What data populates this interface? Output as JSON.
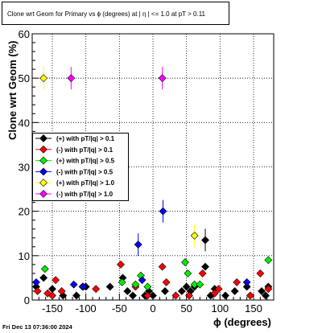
{
  "chart_data": {
    "type": "scatter",
    "title": "Clone wrt Geom for Primary vs ϕ (degrees) at |  η  | <= 1.0 at pT > 0.11",
    "xlabel": "ϕ (degrees)",
    "ylabel": "Clone wrt Geom (%)",
    "xlim": [
      -180,
      180
    ],
    "ylim": [
      0,
      60
    ],
    "xticks": [
      -150,
      -100,
      -50,
      0,
      50,
      100,
      150
    ],
    "yticks": [
      0,
      10,
      20,
      30,
      40,
      50,
      60
    ],
    "grid": true,
    "legend_position": "left-middle",
    "series": [
      {
        "name": "(+) with pT/|q| > 0.1",
        "color": "#000000",
        "points": [
          [
            -174,
            3
          ],
          [
            -163,
            5
          ],
          [
            -150,
            2.5
          ],
          [
            -134,
            1
          ],
          [
            -114,
            1
          ],
          [
            -100,
            3
          ],
          [
            -64,
            3
          ],
          [
            -45,
            5
          ],
          [
            -38,
            2
          ],
          [
            -30,
            1
          ],
          [
            -12,
            1
          ],
          [
            -6,
            2
          ],
          [
            0,
            1
          ],
          [
            18,
            2
          ],
          [
            43,
            2
          ],
          [
            50,
            3
          ],
          [
            56,
            2
          ],
          [
            62,
            3
          ],
          [
            78,
            7.5
          ],
          [
            78,
            13.5
          ],
          [
            86,
            1
          ],
          [
            92,
            2.5
          ],
          [
            108,
            1
          ],
          [
            122,
            2
          ],
          [
            140,
            3
          ],
          [
            162,
            2
          ],
          [
            168,
            1
          ],
          [
            172,
            3
          ]
        ]
      },
      {
        "name": "(-) with pT/|q| > 0.1",
        "color": "#ff0000",
        "points": [
          [
            -172,
            2
          ],
          [
            -157,
            1.5
          ],
          [
            -150,
            1
          ],
          [
            -145,
            4.5
          ],
          [
            -136,
            2
          ],
          [
            -105,
            3
          ],
          [
            -85,
            2.5
          ],
          [
            -48,
            8
          ],
          [
            -26,
            3
          ],
          [
            -8,
            1
          ],
          [
            14,
            7.5
          ],
          [
            20,
            4
          ],
          [
            34,
            1
          ],
          [
            54,
            1
          ],
          [
            74,
            6
          ],
          [
            92,
            1.5
          ],
          [
            98,
            2.5
          ],
          [
            125,
            4
          ],
          [
            145,
            1
          ],
          [
            160,
            6
          ],
          [
            172,
            2.5
          ]
        ]
      },
      {
        "name": "(+) with pT/|q| > 0.5",
        "color": "#00ee00",
        "points": [
          [
            -161,
            7
          ],
          [
            -46,
            4
          ],
          [
            -26,
            3.5
          ],
          [
            -18,
            5.5
          ],
          [
            -8,
            3
          ],
          [
            48,
            8.5
          ],
          [
            52,
            6
          ],
          [
            62,
            3.5
          ],
          [
            70,
            3.5
          ],
          [
            172,
            9
          ]
        ]
      },
      {
        "name": "(-) with pT/|q| > 0.5",
        "color": "#0000ff",
        "points": [
          [
            -174,
            4
          ],
          [
            -118,
            3.5
          ],
          [
            -104,
            3
          ],
          [
            -22,
            12.5
          ],
          [
            -16,
            4.5
          ],
          [
            15,
            20
          ],
          [
            140,
            4
          ]
        ]
      },
      {
        "name": "(+) with pT/|q| > 1.0",
        "color": "#ffff00",
        "points": [
          [
            -163,
            50
          ],
          [
            62,
            14.5
          ]
        ]
      },
      {
        "name": "(-) with pT/|q| > 1.0",
        "color": "#ff00ff",
        "points": [
          [
            -122,
            50
          ],
          [
            14,
            50
          ]
        ]
      }
    ]
  },
  "footer": {
    "timestamp": "Fri Dec 13 07:36:00 2024"
  }
}
